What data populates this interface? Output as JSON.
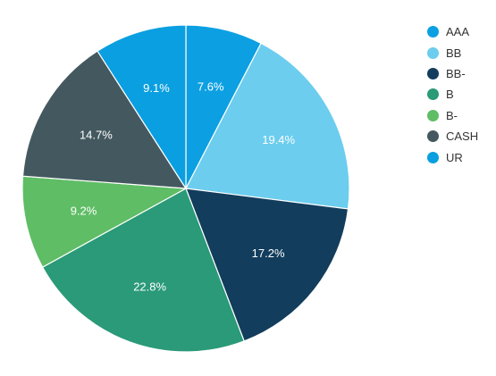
{
  "chart_data": {
    "type": "pie",
    "categories": [
      "AAA",
      "BB",
      "BB-",
      "B",
      "B-",
      "CASH",
      "UR"
    ],
    "values": [
      7.6,
      19.4,
      17.2,
      22.8,
      9.2,
      14.7,
      9.1
    ],
    "data_labels": [
      "7.6%",
      "19.4%",
      "17.2%",
      "22.8%",
      "9.2%",
      "14.7%",
      "9.1%"
    ],
    "colors": [
      "#0ca0e2",
      "#6ccdee",
      "#123d5c",
      "#2a9a78",
      "#5fbd65",
      "#44595f",
      "#0a9fe0"
    ],
    "start_angle": "12 o'clock",
    "direction": "clockwise",
    "legend_position": "top-right"
  }
}
